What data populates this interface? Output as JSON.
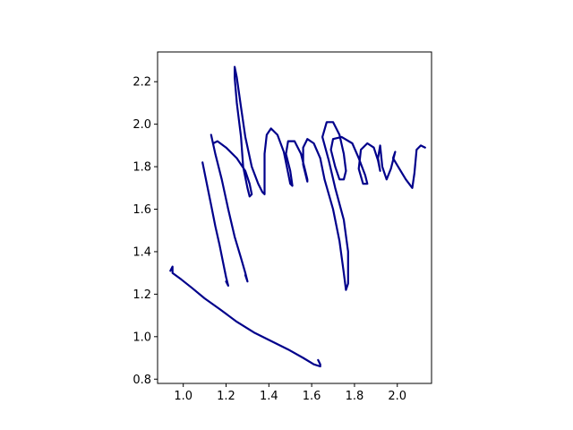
{
  "chart_data": {
    "type": "line",
    "title": "",
    "xlabel": "",
    "ylabel": "",
    "xlim": [
      0.88,
      2.16
    ],
    "ylim": [
      0.78,
      2.34
    ],
    "grid": false,
    "legend": "none",
    "x_ticks": [
      1.0,
      1.2,
      1.4,
      1.6,
      1.8,
      2.0
    ],
    "x_tick_labels": [
      "1.0",
      "1.2",
      "1.4",
      "1.6",
      "1.8",
      "2.0"
    ],
    "y_ticks": [
      0.8,
      1.0,
      1.2,
      1.4,
      1.6,
      1.8,
      2.0,
      2.2
    ],
    "y_tick_labels": [
      "0.8",
      "1.0",
      "1.2",
      "1.4",
      "1.6",
      "1.8",
      "2.0",
      "2.2"
    ],
    "colors": {
      "line": "#00008b",
      "axes": "#000000",
      "background": "#ffffff"
    },
    "series": [
      {
        "points": [
          [
            1.09,
            1.82
          ],
          [
            1.11,
            1.72
          ],
          [
            1.13,
            1.62
          ],
          [
            1.15,
            1.52
          ],
          [
            1.17,
            1.43
          ],
          [
            1.19,
            1.33
          ],
          [
            1.2,
            1.28
          ],
          [
            1.21,
            1.24
          ],
          [
            1.2,
            1.26
          ]
        ]
      },
      {
        "points": [
          [
            1.13,
            1.95
          ],
          [
            1.15,
            1.86
          ],
          [
            1.18,
            1.74
          ],
          [
            1.21,
            1.6
          ],
          [
            1.24,
            1.47
          ],
          [
            1.27,
            1.37
          ],
          [
            1.29,
            1.3
          ],
          [
            1.3,
            1.26
          ],
          [
            1.29,
            1.29
          ]
        ]
      },
      {
        "points": [
          [
            1.14,
            1.91
          ],
          [
            1.16,
            1.92
          ],
          [
            1.2,
            1.89
          ],
          [
            1.25,
            1.84
          ],
          [
            1.29,
            1.78
          ],
          [
            1.31,
            1.72
          ],
          [
            1.32,
            1.67
          ],
          [
            1.31,
            1.66
          ],
          [
            1.3,
            1.7
          ],
          [
            1.28,
            1.8
          ],
          [
            1.27,
            1.94
          ],
          [
            1.25,
            2.1
          ],
          [
            1.24,
            2.22
          ],
          [
            1.24,
            2.27
          ],
          [
            1.25,
            2.22
          ],
          [
            1.27,
            2.08
          ],
          [
            1.29,
            1.94
          ],
          [
            1.32,
            1.8
          ],
          [
            1.35,
            1.72
          ],
          [
            1.37,
            1.68
          ],
          [
            1.38,
            1.67
          ],
          [
            1.38,
            1.75
          ],
          [
            1.38,
            1.86
          ],
          [
            1.39,
            1.95
          ],
          [
            1.41,
            1.98
          ],
          [
            1.44,
            1.95
          ],
          [
            1.47,
            1.87
          ],
          [
            1.49,
            1.77
          ],
          [
            1.5,
            1.72
          ],
          [
            1.51,
            1.71
          ],
          [
            1.5,
            1.78
          ],
          [
            1.48,
            1.86
          ],
          [
            1.49,
            1.92
          ],
          [
            1.52,
            1.92
          ],
          [
            1.55,
            1.86
          ],
          [
            1.57,
            1.78
          ],
          [
            1.58,
            1.74
          ],
          [
            1.58,
            1.73
          ],
          [
            1.56,
            1.81
          ],
          [
            1.56,
            1.89
          ],
          [
            1.58,
            1.93
          ],
          [
            1.61,
            1.91
          ],
          [
            1.64,
            1.84
          ],
          [
            1.66,
            1.74
          ],
          [
            1.7,
            1.6
          ],
          [
            1.73,
            1.45
          ],
          [
            1.75,
            1.3
          ],
          [
            1.76,
            1.22
          ],
          [
            1.77,
            1.25
          ],
          [
            1.77,
            1.4
          ],
          [
            1.75,
            1.55
          ],
          [
            1.71,
            1.7
          ],
          [
            1.68,
            1.83
          ],
          [
            1.65,
            1.94
          ],
          [
            1.67,
            2.01
          ],
          [
            1.7,
            2.01
          ],
          [
            1.73,
            1.95
          ],
          [
            1.75,
            1.86
          ],
          [
            1.76,
            1.78
          ],
          [
            1.75,
            1.74
          ],
          [
            1.73,
            1.74
          ],
          [
            1.71,
            1.8
          ],
          [
            1.69,
            1.88
          ],
          [
            1.7,
            1.93
          ],
          [
            1.74,
            1.94
          ],
          [
            1.79,
            1.91
          ],
          [
            1.82,
            1.84
          ],
          [
            1.85,
            1.76
          ],
          [
            1.86,
            1.72
          ],
          [
            1.84,
            1.72
          ],
          [
            1.82,
            1.79
          ],
          [
            1.83,
            1.88
          ],
          [
            1.86,
            1.91
          ],
          [
            1.89,
            1.89
          ],
          [
            1.91,
            1.83
          ],
          [
            1.92,
            1.78
          ],
          [
            1.91,
            1.84
          ],
          [
            1.92,
            1.9
          ],
          [
            1.93,
            1.8
          ],
          [
            1.95,
            1.74
          ],
          [
            1.97,
            1.79
          ],
          [
            1.99,
            1.87
          ],
          [
            1.98,
            1.84
          ],
          [
            2.01,
            1.79
          ],
          [
            2.04,
            1.74
          ],
          [
            2.07,
            1.7
          ],
          [
            2.08,
            1.77
          ],
          [
            2.09,
            1.88
          ],
          [
            2.11,
            1.9
          ],
          [
            2.13,
            1.89
          ]
        ]
      },
      {
        "points": [
          [
            0.94,
            1.31
          ],
          [
            0.95,
            1.33
          ],
          [
            0.95,
            1.3
          ],
          [
            0.99,
            1.27
          ],
          [
            1.04,
            1.23
          ],
          [
            1.1,
            1.18
          ],
          [
            1.17,
            1.13
          ],
          [
            1.25,
            1.07
          ],
          [
            1.33,
            1.02
          ],
          [
            1.41,
            0.98
          ],
          [
            1.49,
            0.94
          ],
          [
            1.56,
            0.9
          ],
          [
            1.61,
            0.87
          ],
          [
            1.64,
            0.86
          ],
          [
            1.64,
            0.87
          ],
          [
            1.63,
            0.89
          ]
        ]
      }
    ]
  }
}
